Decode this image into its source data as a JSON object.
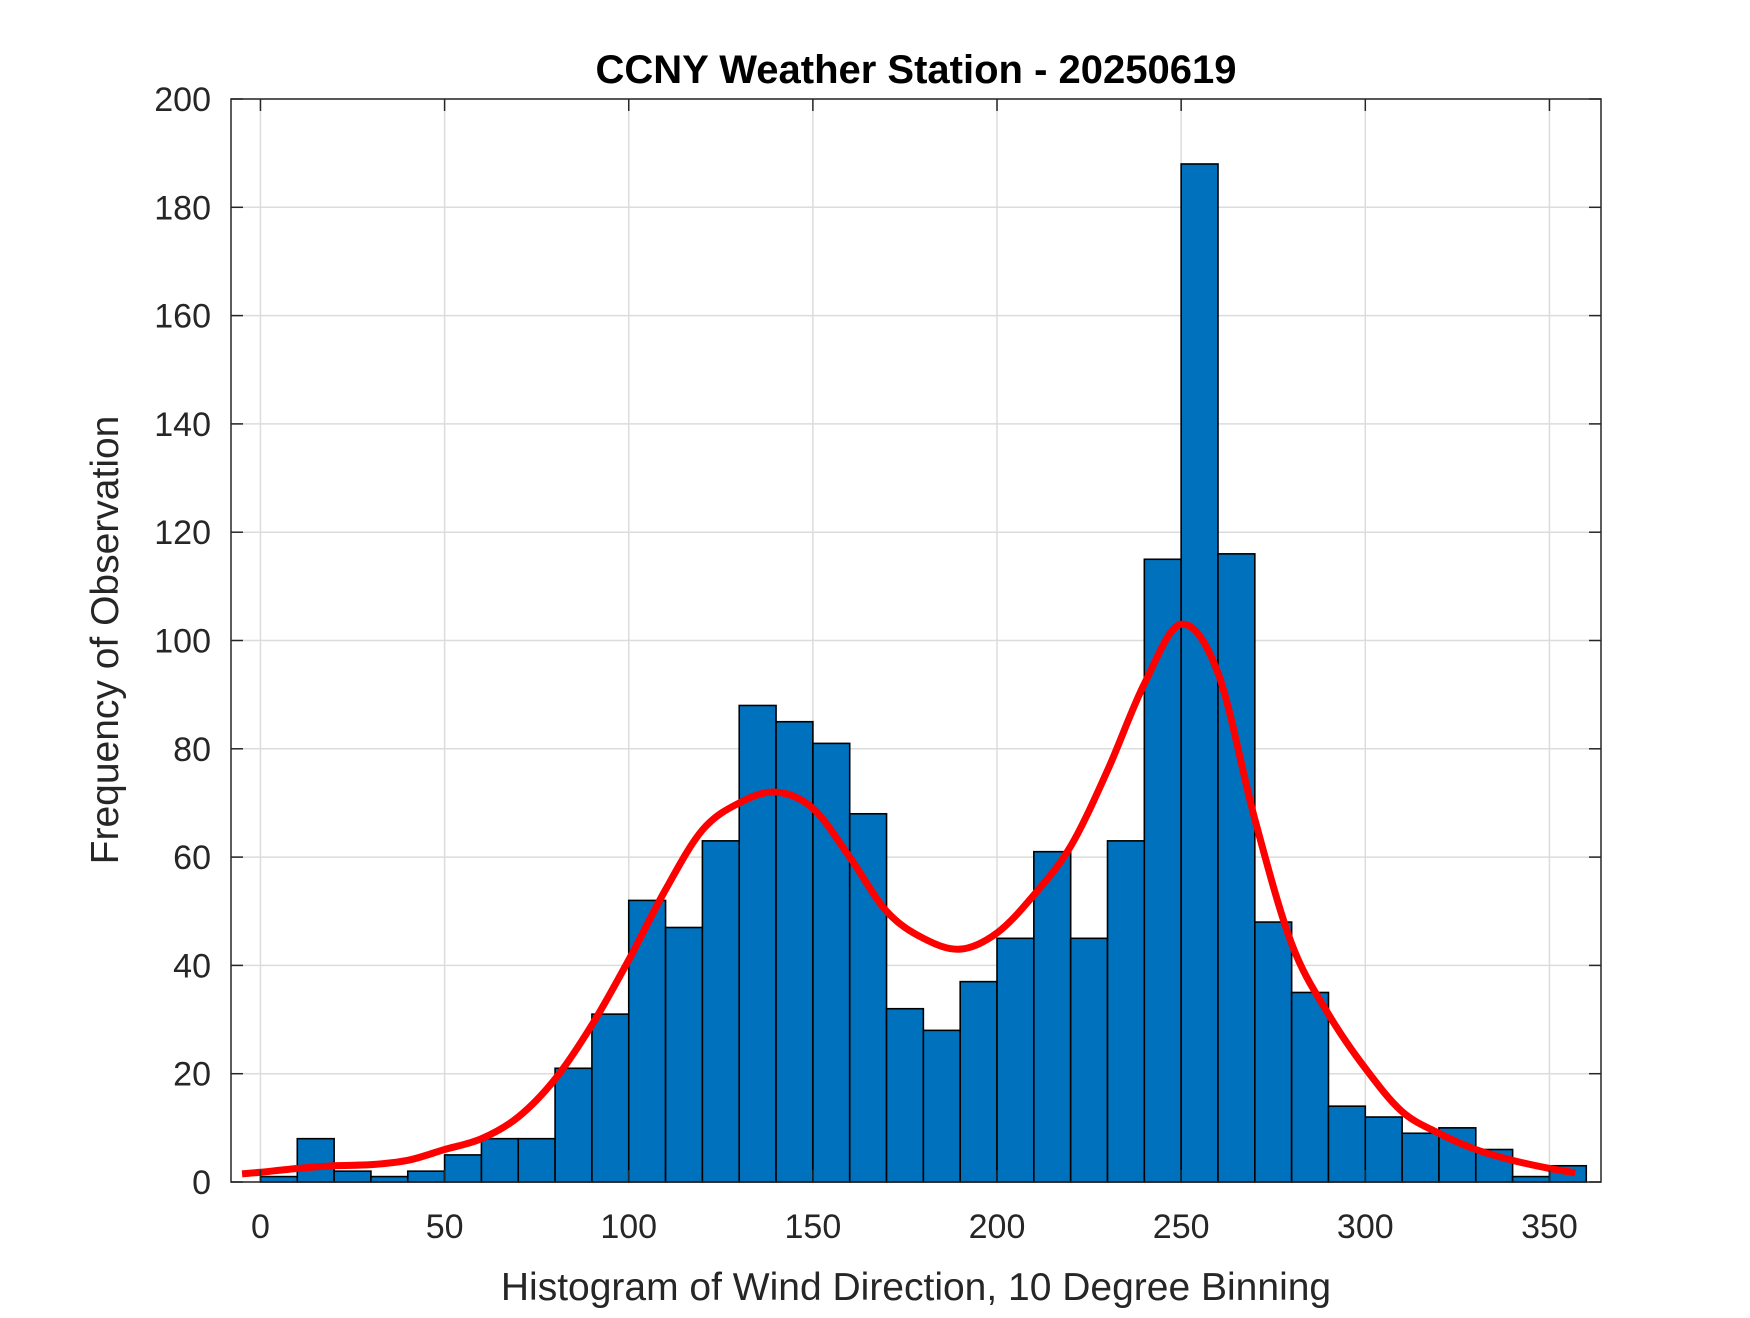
{
  "chart_data": {
    "type": "bar",
    "title": "CCNY Weather Station - 20250619",
    "xlabel": "Histogram of Wind Direction, 10 Degree Binning",
    "ylabel": "Frequency of Observation",
    "xlim": [
      -8,
      364
    ],
    "ylim": [
      0,
      200
    ],
    "xticks": [
      0,
      50,
      100,
      150,
      200,
      250,
      300,
      350
    ],
    "yticks": [
      0,
      20,
      40,
      60,
      80,
      100,
      120,
      140,
      160,
      180,
      200
    ],
    "grid": true,
    "bin_width": 10,
    "bin_edges_start": [
      0,
      10,
      20,
      30,
      40,
      50,
      60,
      70,
      80,
      90,
      100,
      110,
      120,
      130,
      140,
      150,
      160,
      170,
      180,
      190,
      200,
      210,
      220,
      230,
      240,
      250,
      260,
      270,
      280,
      290,
      300,
      310,
      320,
      330,
      340,
      350
    ],
    "values": [
      1,
      8,
      2,
      1,
      2,
      5,
      8,
      8,
      21,
      31,
      52,
      47,
      63,
      88,
      85,
      81,
      68,
      32,
      28,
      37,
      45,
      61,
      45,
      63,
      115,
      188,
      116,
      48,
      35,
      14,
      12,
      9,
      10,
      6,
      1,
      3
    ],
    "bar_color": "#0072BD",
    "fit_curve": {
      "color": "#FF0000",
      "x": [
        -5,
        0,
        10,
        20,
        30,
        40,
        50,
        60,
        70,
        80,
        90,
        100,
        110,
        120,
        130,
        140,
        150,
        160,
        170,
        180,
        190,
        200,
        210,
        220,
        230,
        240,
        250,
        260,
        270,
        280,
        290,
        300,
        310,
        320,
        330,
        340,
        350,
        357
      ],
      "y": [
        1.5,
        1.8,
        2.5,
        3,
        3.2,
        4,
        6,
        8,
        12,
        19,
        29,
        41,
        54,
        65,
        70,
        72,
        69,
        60,
        50,
        45,
        43,
        46,
        53,
        62,
        76,
        92,
        103,
        94,
        67,
        44,
        31,
        21,
        13,
        9,
        6,
        4,
        2.5,
        1.7
      ]
    }
  }
}
